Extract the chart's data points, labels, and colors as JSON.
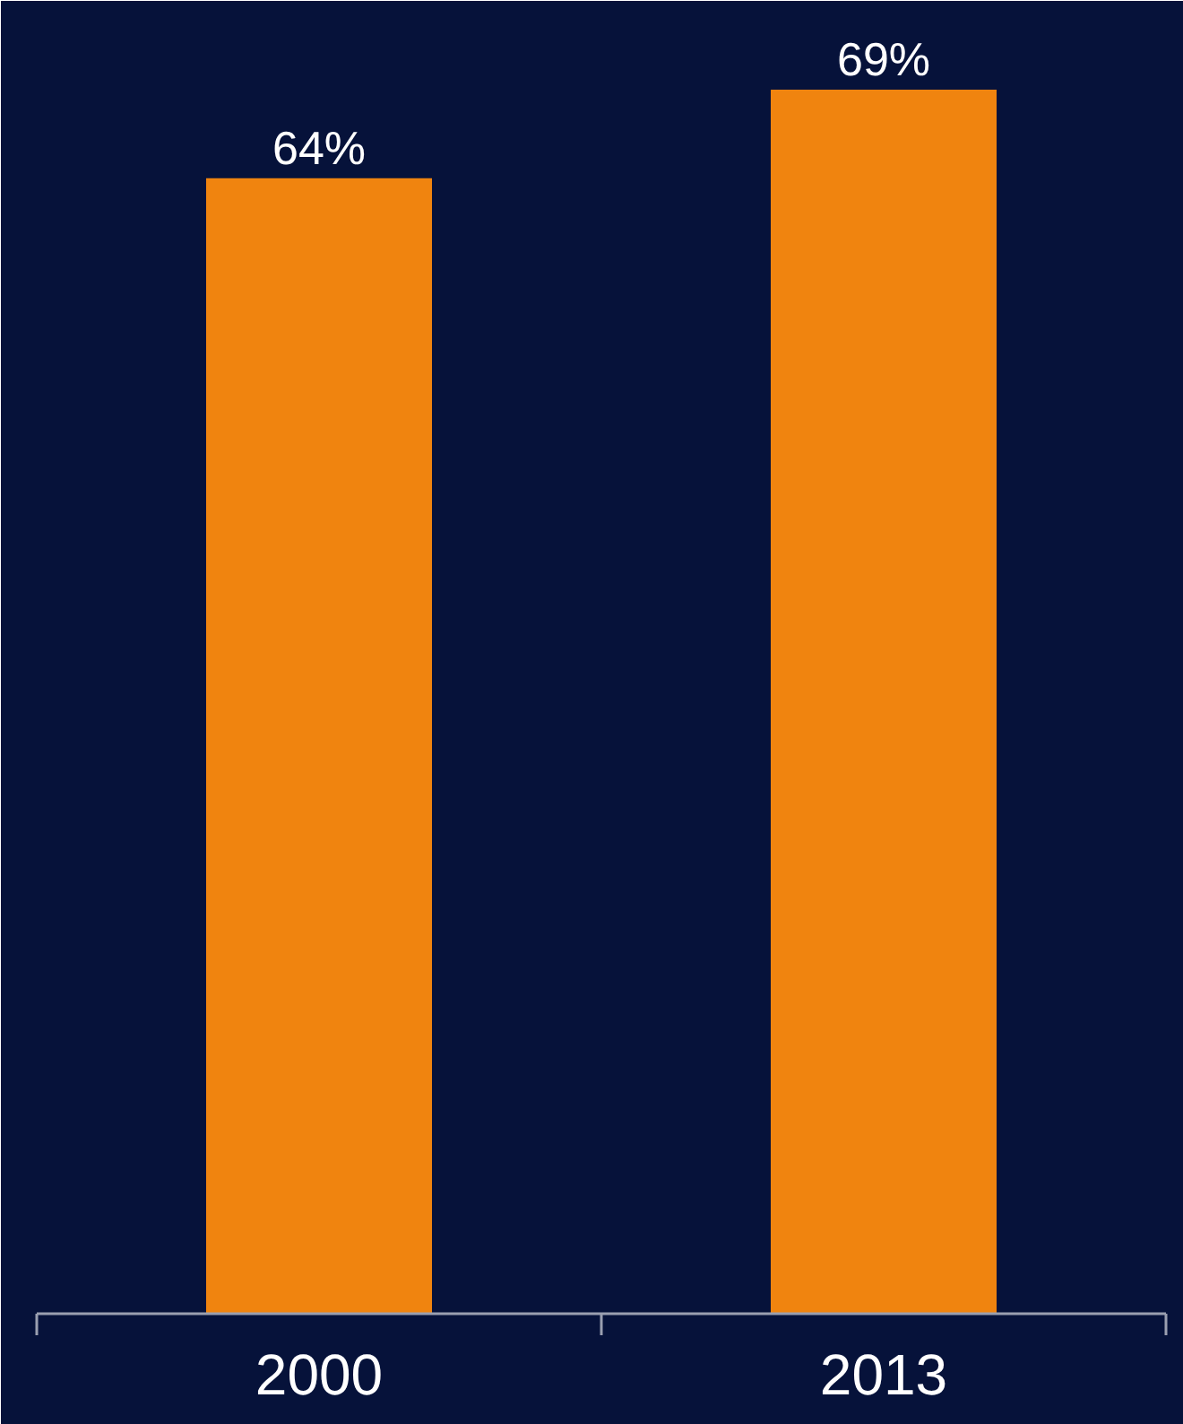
{
  "chart_data": {
    "type": "bar",
    "categories": [
      "2000",
      "2013"
    ],
    "values": [
      64,
      69
    ],
    "value_labels": [
      "64%",
      "69%"
    ],
    "color": "#f0840f",
    "ylim": [
      0,
      74
    ]
  }
}
